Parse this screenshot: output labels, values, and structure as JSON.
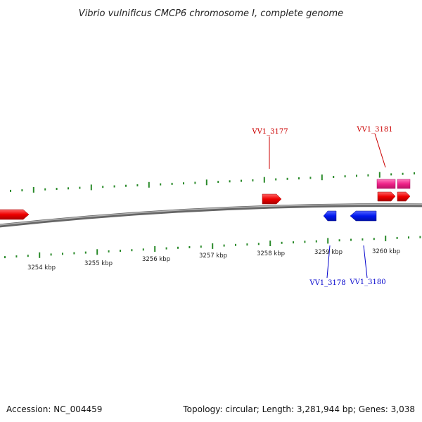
{
  "title": "Vibrio vulnificus CMCP6 chromosome I, complete genome",
  "scale_labels": [
    "3254 kbp",
    "3255 kbp",
    "3256 kbp",
    "3257 kbp",
    "3258 kbp",
    "3259 kbp",
    "3260 kbp"
  ],
  "genes": {
    "VV1_3177": "VV1_3177",
    "VV1_3181": "VV1_3181",
    "VV1_3178": "VV1_3178",
    "VV1_3180": "VV1_3180"
  },
  "footer": {
    "accession": "Accession: NC_004459",
    "summary": "Topology: circular; Length: 3,281,944 bp; Genes: 3,038"
  },
  "colors": {
    "forward_gene": "#ee0000",
    "reverse_gene": "#0018ee",
    "feature_pink": "#ee2288",
    "tick": "#2a8a2a",
    "backbone": "#777777",
    "forward_label": "#cc0000",
    "reverse_label": "#0000cc"
  }
}
